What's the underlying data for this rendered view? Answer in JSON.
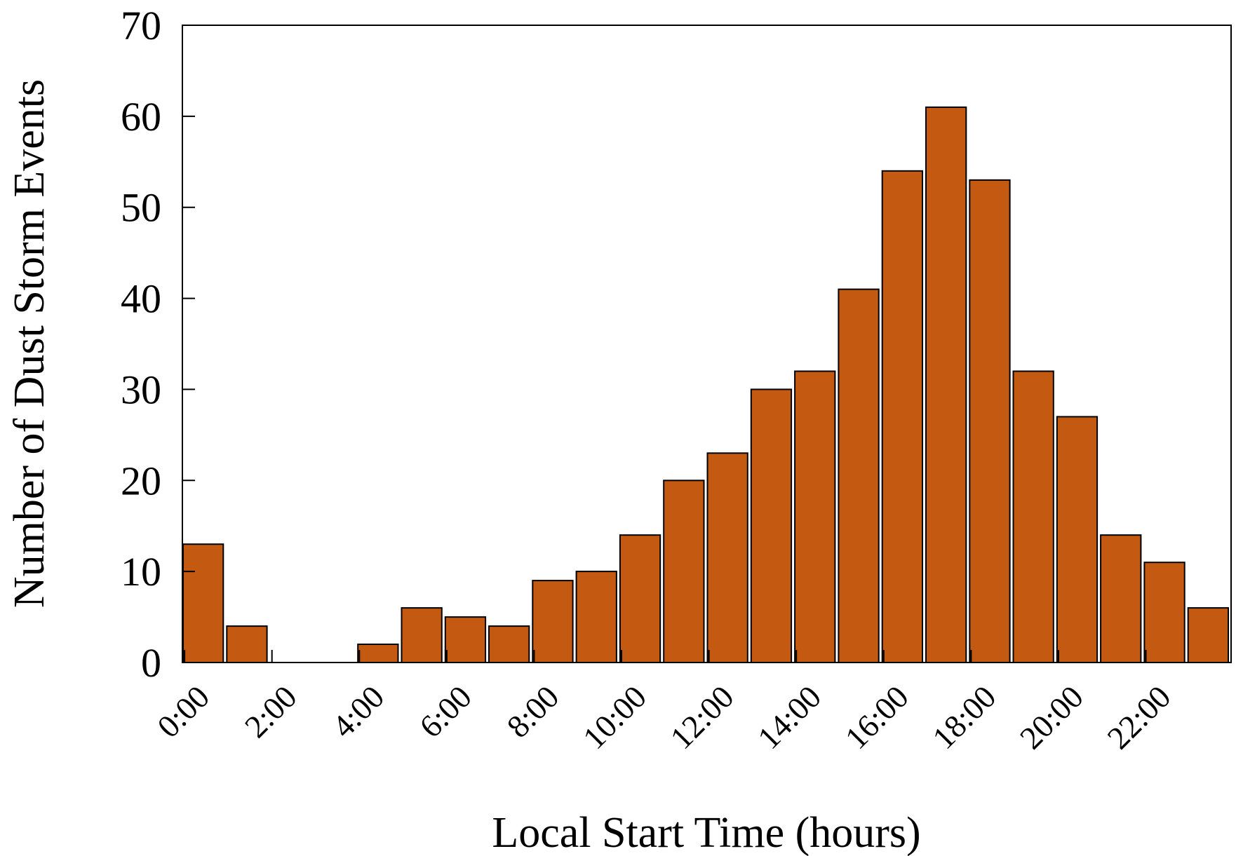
{
  "chart_data": {
    "type": "bar",
    "title": "",
    "xlabel": "Local Start Time (hours)",
    "ylabel": "Number of Dust Storm Events",
    "categories": [
      "0:00",
      "1:00",
      "2:00",
      "3:00",
      "4:00",
      "5:00",
      "6:00",
      "7:00",
      "8:00",
      "9:00",
      "10:00",
      "11:00",
      "12:00",
      "13:00",
      "14:00",
      "15:00",
      "16:00",
      "17:00",
      "18:00",
      "19:00",
      "20:00",
      "21:00",
      "22:00",
      "23:00"
    ],
    "x_tick_labels": [
      "0:00",
      "2:00",
      "4:00",
      "6:00",
      "8:00",
      "10:00",
      "12:00",
      "14:00",
      "16:00",
      "18:00",
      "20:00",
      "22:00"
    ],
    "values": [
      13,
      4,
      0,
      0,
      2,
      6,
      5,
      4,
      9,
      10,
      14,
      20,
      23,
      30,
      32,
      41,
      54,
      61,
      53,
      32,
      27,
      14,
      11,
      6
    ],
    "ylim": [
      0,
      70
    ],
    "y_ticks": [
      0,
      10,
      20,
      30,
      40,
      50,
      60,
      70
    ],
    "grid": false,
    "legend": "none",
    "bar_color": "#c45a12"
  }
}
